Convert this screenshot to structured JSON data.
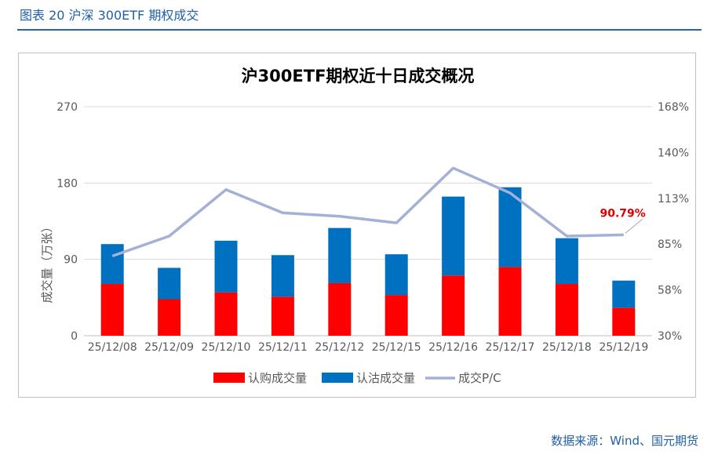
{
  "figure_caption": "图表 20 沪深 300ETF 期权成交",
  "source_note": "数据来源：Wind、国元期货",
  "colors": {
    "call": "#ff0000",
    "put": "#0070c0",
    "pc_line": "#a4b0d6",
    "highlight": "#e00000",
    "axis_text": "#595959",
    "grid": "#d9d9d9",
    "caption": "#1f5fa8"
  },
  "chart_data": {
    "type": "bar",
    "title": "沪300ETF期权近十日成交概况",
    "ylabel": "成交量（万张）",
    "y2label": "",
    "categories": [
      "25/12/08",
      "25/12/09",
      "25/12/10",
      "25/12/11",
      "25/12/12",
      "25/12/15",
      "25/12/16",
      "25/12/17",
      "25/12/18",
      "25/12/19"
    ],
    "stacked": true,
    "series": [
      {
        "name": "认购成交量",
        "kind": "bar",
        "axis": "left",
        "values": [
          61,
          43,
          51,
          46,
          62,
          48,
          71,
          81,
          61,
          33
        ]
      },
      {
        "name": "认沽成交量",
        "kind": "bar",
        "axis": "left",
        "values": [
          47,
          37,
          61,
          49,
          65,
          48,
          93,
          94,
          54,
          32
        ]
      },
      {
        "name": "成交P/C",
        "kind": "line",
        "axis": "right",
        "values": [
          0.78,
          0.9,
          1.18,
          1.04,
          1.02,
          0.98,
          1.31,
          1.16,
          0.9,
          0.9079
        ]
      }
    ],
    "ylim": [
      0,
      270
    ],
    "yticks": [
      "0",
      "90",
      "180",
      "270"
    ],
    "y2lim": [
      0.3,
      1.68
    ],
    "y2ticks": [
      "30%",
      "58%",
      "85%",
      "113%",
      "140%",
      "168%"
    ],
    "annotation": {
      "text": "90.79%",
      "series": "成交P/C",
      "index": 9
    },
    "legend": "bottom",
    "grid": "horizontal"
  }
}
